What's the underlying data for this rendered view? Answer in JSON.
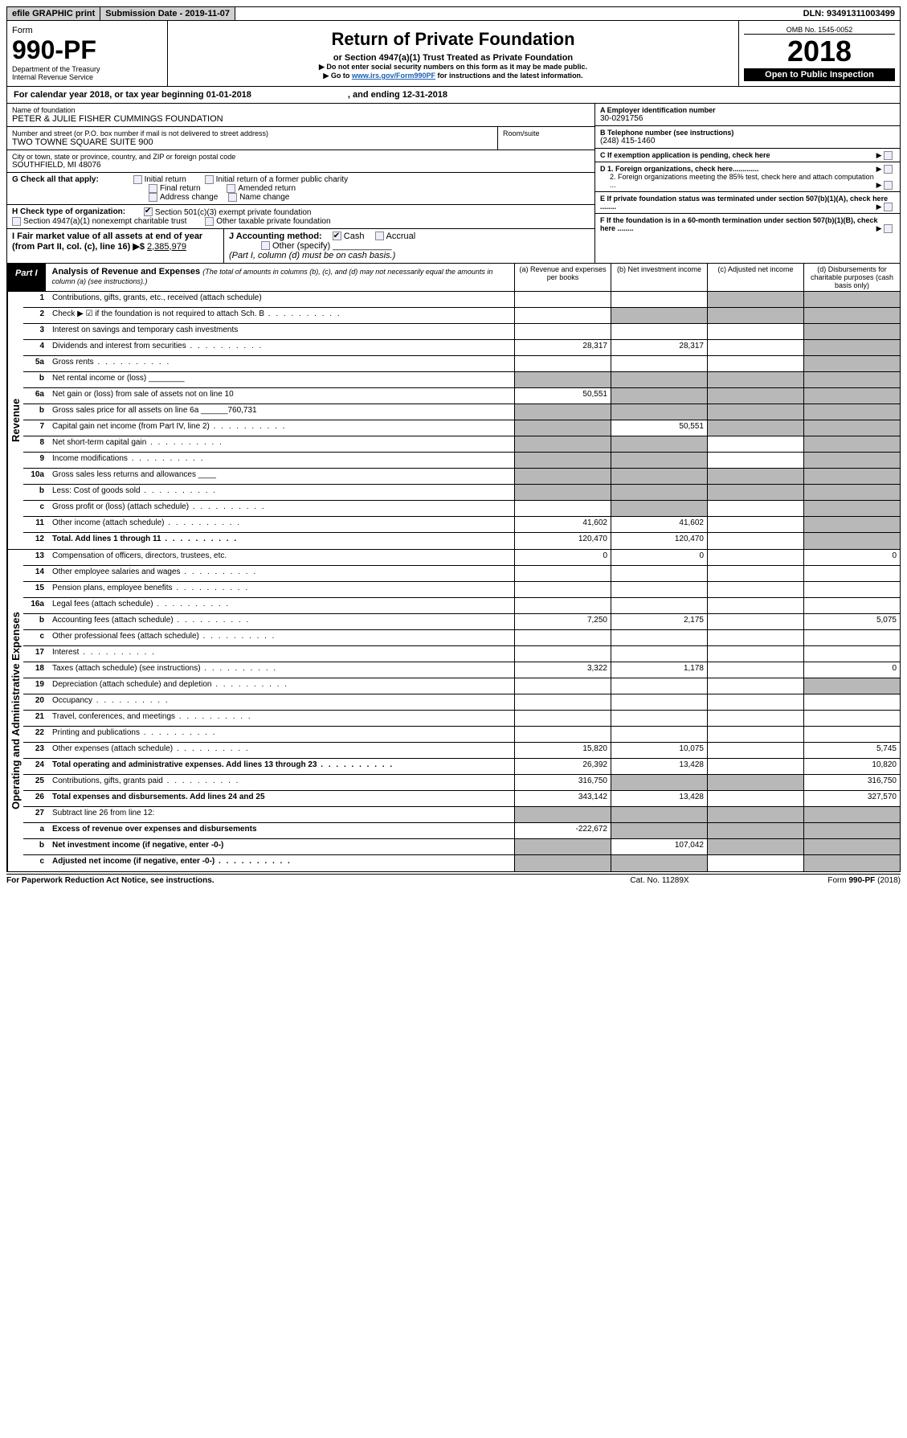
{
  "topbar": {
    "efile": "efile GRAPHIC print",
    "submission_label": "Submission Date - 2019-11-07",
    "dln_label": "DLN: 93491311003499"
  },
  "header": {
    "form_label": "Form",
    "form_no": "990-PF",
    "dept": "Department of the Treasury",
    "irs": "Internal Revenue Service",
    "title": "Return of Private Foundation",
    "subtitle": "or Section 4947(a)(1) Trust Treated as Private Foundation",
    "warn1": "▶ Do not enter social security numbers on this form as it may be made public.",
    "warn2_pre": "▶ Go to ",
    "warn2_link": "www.irs.gov/Form990PF",
    "warn2_post": " for instructions and the latest information.",
    "omb": "OMB No. 1545-0052",
    "year": "2018",
    "inspection": "Open to Public Inspection"
  },
  "calyear": {
    "pre": "For calendar year 2018, or tax year beginning 01-01-2018",
    "post": ", and ending 12-31-2018"
  },
  "info": {
    "name_label": "Name of foundation",
    "name": "PETER & JULIE FISHER CUMMINGS FOUNDATION",
    "addr_label": "Number and street (or P.O. box number if mail is not delivered to street address)",
    "addr": "TWO TOWNE SQUARE SUITE 900",
    "room_label": "Room/suite",
    "city_label": "City or town, state or province, country, and ZIP or foreign postal code",
    "city": "SOUTHFIELD, MI  48076",
    "ein_label": "A Employer identification number",
    "ein": "30-0291756",
    "phone_label": "B Telephone number (see instructions)",
    "phone": "(248) 415-1460",
    "c_label": "C If exemption application is pending, check here",
    "d1": "D 1. Foreign organizations, check here.............",
    "d2": "2. Foreign organizations meeting the 85% test, check here and attach computation ...",
    "e": "E If private foundation status was terminated under section 507(b)(1)(A), check here ........",
    "f": "F If the foundation is in a 60-month termination under section 507(b)(1)(B), check here ........",
    "g_label": "G Check all that apply:",
    "g_opts": [
      "Initial return",
      "Initial return of a former public charity",
      "Final return",
      "Amended return",
      "Address change",
      "Name change"
    ],
    "h_label": "H Check type of organization:",
    "h_501": "Section 501(c)(3) exempt private foundation",
    "h_4947": "Section 4947(a)(1) nonexempt charitable trust",
    "h_other": "Other taxable private foundation",
    "i_label": "I Fair market value of all assets at end of year (from Part II, col. (c), line 16) ▶$ ",
    "i_val": "2,385,979",
    "j_label": "J Accounting method:",
    "j_cash": "Cash",
    "j_accrual": "Accrual",
    "j_other": "Other (specify)",
    "j_note": "(Part I, column (d) must be on cash basis.)"
  },
  "part1": {
    "tag": "Part I",
    "title": "Analysis of Revenue and Expenses",
    "note": "(The total of amounts in columns (b), (c), and (d) may not necessarily equal the amounts in column (a) (see instructions).)",
    "col_a": "(a)   Revenue and expenses per books",
    "col_b": "(b)  Net investment income",
    "col_c": "(c)  Adjusted net income",
    "col_d": "(d)  Disbursements for charitable purposes (cash basis only)"
  },
  "sections": {
    "revenue_label": "Revenue",
    "expenses_label": "Operating and Administrative Expenses"
  },
  "rows": [
    {
      "ln": "1",
      "desc": "Contributions, gifts, grants, etc., received (attach schedule)",
      "a": "",
      "b": "",
      "c": "s",
      "d": "s"
    },
    {
      "ln": "2",
      "desc": "Check ▶ ☑ if the foundation is not required to attach Sch. B",
      "a": "",
      "b": "s",
      "c": "s",
      "d": "s",
      "dots": true
    },
    {
      "ln": "3",
      "desc": "Interest on savings and temporary cash investments",
      "a": "",
      "b": "",
      "c": "",
      "d": "s"
    },
    {
      "ln": "4",
      "desc": "Dividends and interest from securities",
      "a": "28,317",
      "b": "28,317",
      "c": "",
      "d": "s",
      "dots": true
    },
    {
      "ln": "5a",
      "desc": "Gross rents",
      "a": "",
      "b": "",
      "c": "",
      "d": "s",
      "dots": true
    },
    {
      "ln": "b",
      "desc": "Net rental income or (loss)  ________",
      "a": "s",
      "b": "s",
      "c": "s",
      "d": "s"
    },
    {
      "ln": "6a",
      "desc": "Net gain or (loss) from sale of assets not on line 10",
      "a": "50,551",
      "b": "s",
      "c": "s",
      "d": "s"
    },
    {
      "ln": "b",
      "desc": "Gross sales price for all assets on line 6a ______760,731",
      "a": "s",
      "b": "s",
      "c": "s",
      "d": "s"
    },
    {
      "ln": "7",
      "desc": "Capital gain net income (from Part IV, line 2)",
      "a": "s",
      "b": "50,551",
      "c": "s",
      "d": "s",
      "dots": true
    },
    {
      "ln": "8",
      "desc": "Net short-term capital gain",
      "a": "s",
      "b": "s",
      "c": "",
      "d": "s",
      "dots": true
    },
    {
      "ln": "9",
      "desc": "Income modifications",
      "a": "s",
      "b": "s",
      "c": "",
      "d": "s",
      "dots": true
    },
    {
      "ln": "10a",
      "desc": "Gross sales less returns and allowances  ____",
      "a": "s",
      "b": "s",
      "c": "s",
      "d": "s"
    },
    {
      "ln": "b",
      "desc": "Less: Cost of goods sold",
      "a": "s",
      "b": "s",
      "c": "s",
      "d": "s",
      "dots": true
    },
    {
      "ln": "c",
      "desc": "Gross profit or (loss) (attach schedule)",
      "a": "",
      "b": "s",
      "c": "",
      "d": "s",
      "dots": true
    },
    {
      "ln": "11",
      "desc": "Other income (attach schedule)",
      "a": "41,602",
      "b": "41,602",
      "c": "",
      "d": "s",
      "dots": true
    },
    {
      "ln": "12",
      "desc": "Total. Add lines 1 through 11",
      "a": "120,470",
      "b": "120,470",
      "c": "",
      "d": "s",
      "bold": true,
      "dots": true
    },
    {
      "ln": "13",
      "desc": "Compensation of officers, directors, trustees, etc.",
      "a": "0",
      "b": "0",
      "c": "",
      "d": "0"
    },
    {
      "ln": "14",
      "desc": "Other employee salaries and wages",
      "a": "",
      "b": "",
      "c": "",
      "d": "",
      "dots": true
    },
    {
      "ln": "15",
      "desc": "Pension plans, employee benefits",
      "a": "",
      "b": "",
      "c": "",
      "d": "",
      "dots": true
    },
    {
      "ln": "16a",
      "desc": "Legal fees (attach schedule)",
      "a": "",
      "b": "",
      "c": "",
      "d": "",
      "dots": true
    },
    {
      "ln": "b",
      "desc": "Accounting fees (attach schedule)",
      "a": "7,250",
      "b": "2,175",
      "c": "",
      "d": "5,075",
      "dots": true
    },
    {
      "ln": "c",
      "desc": "Other professional fees (attach schedule)",
      "a": "",
      "b": "",
      "c": "",
      "d": "",
      "dots": true
    },
    {
      "ln": "17",
      "desc": "Interest",
      "a": "",
      "b": "",
      "c": "",
      "d": "",
      "dots": true
    },
    {
      "ln": "18",
      "desc": "Taxes (attach schedule) (see instructions)",
      "a": "3,322",
      "b": "1,178",
      "c": "",
      "d": "0",
      "dots": true
    },
    {
      "ln": "19",
      "desc": "Depreciation (attach schedule) and depletion",
      "a": "",
      "b": "",
      "c": "",
      "d": "s",
      "dots": true
    },
    {
      "ln": "20",
      "desc": "Occupancy",
      "a": "",
      "b": "",
      "c": "",
      "d": "",
      "dots": true
    },
    {
      "ln": "21",
      "desc": "Travel, conferences, and meetings",
      "a": "",
      "b": "",
      "c": "",
      "d": "",
      "dots": true
    },
    {
      "ln": "22",
      "desc": "Printing and publications",
      "a": "",
      "b": "",
      "c": "",
      "d": "",
      "dots": true
    },
    {
      "ln": "23",
      "desc": "Other expenses (attach schedule)",
      "a": "15,820",
      "b": "10,075",
      "c": "",
      "d": "5,745",
      "dots": true
    },
    {
      "ln": "24",
      "desc": "Total operating and administrative expenses. Add lines 13 through 23",
      "a": "26,392",
      "b": "13,428",
      "c": "",
      "d": "10,820",
      "bold": true,
      "dots": true
    },
    {
      "ln": "25",
      "desc": "Contributions, gifts, grants paid",
      "a": "316,750",
      "b": "s",
      "c": "s",
      "d": "316,750",
      "dots": true
    },
    {
      "ln": "26",
      "desc": "Total expenses and disbursements. Add lines 24 and 25",
      "a": "343,142",
      "b": "13,428",
      "c": "",
      "d": "327,570",
      "bold": true
    },
    {
      "ln": "27",
      "desc": "Subtract line 26 from line 12:",
      "a": "s",
      "b": "s",
      "c": "s",
      "d": "s"
    },
    {
      "ln": "a",
      "desc": "Excess of revenue over expenses and disbursements",
      "a": "-222,672",
      "b": "s",
      "c": "s",
      "d": "s",
      "bold": true
    },
    {
      "ln": "b",
      "desc": "Net investment income (if negative, enter -0-)",
      "a": "s",
      "b": "107,042",
      "c": "s",
      "d": "s",
      "bold": true
    },
    {
      "ln": "c",
      "desc": "Adjusted net income (if negative, enter -0-)",
      "a": "s",
      "b": "s",
      "c": "",
      "d": "s",
      "bold": true,
      "dots": true
    }
  ],
  "footer": {
    "pra": "For Paperwork Reduction Act Notice, see instructions.",
    "cat": "Cat. No. 11289X",
    "form": "Form 990-PF (2018)"
  }
}
